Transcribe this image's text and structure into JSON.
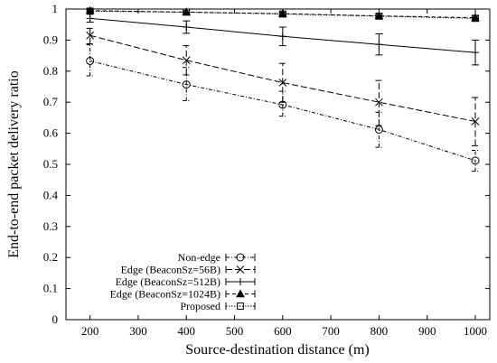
{
  "chart_data": {
    "type": "line",
    "title": "",
    "xlabel": "Source-destination distance (m)",
    "ylabel": "End-to-end packet delivery ratio",
    "xlim": [
      150,
      1030
    ],
    "ylim": [
      0,
      1
    ],
    "x_ticks": [
      "200",
      "300",
      "400",
      "500",
      "600",
      "700",
      "800",
      "900",
      "1000"
    ],
    "y_ticks": [
      "0",
      "0.1",
      "0.2",
      "0.3",
      "0.4",
      "0.5",
      "0.6",
      "0.7",
      "0.8",
      "0.9",
      "1"
    ],
    "x": [
      200,
      400,
      600,
      800,
      1000
    ],
    "grid": false,
    "legend_position": "bottom-left",
    "series": [
      {
        "name": "Non-edge",
        "marker": "circle",
        "dash": "dashdot",
        "values": [
          0.833,
          0.757,
          0.692,
          0.612,
          0.512
        ],
        "err_low": [
          0.785,
          0.705,
          0.655,
          0.555,
          0.478
        ],
        "err_high": [
          0.885,
          0.812,
          0.735,
          0.668,
          0.545
        ]
      },
      {
        "name": "Edge (BeaconSz=56B)",
        "marker": "x",
        "dash": "dashed",
        "values": [
          0.915,
          0.835,
          0.763,
          0.7,
          0.638
        ],
        "err_low": [
          0.888,
          0.788,
          0.7,
          0.625,
          0.56
        ],
        "err_high": [
          0.938,
          0.882,
          0.825,
          0.77,
          0.715
        ]
      },
      {
        "name": "Edge (BeaconSz=512B)",
        "marker": "plus",
        "dash": "solid",
        "values": [
          0.97,
          0.942,
          0.912,
          0.886,
          0.86
        ],
        "err_low": [
          0.958,
          0.922,
          0.882,
          0.852,
          0.82
        ],
        "err_high": [
          0.985,
          0.962,
          0.942,
          0.92,
          0.9
        ]
      },
      {
        "name": "Edge (BeaconSz=1024B)",
        "marker": "triangle",
        "dash": "shortdash",
        "values": [
          0.995,
          0.99,
          0.985,
          0.978,
          0.972
        ],
        "err_low": [
          0.99,
          0.985,
          0.98,
          0.972,
          0.965
        ],
        "err_high": [
          0.998,
          0.995,
          0.99,
          0.985,
          0.978
        ]
      },
      {
        "name": "Proposed",
        "marker": "square",
        "dash": "dotted",
        "values": [
          0.993,
          0.99,
          0.984,
          0.977,
          0.97
        ],
        "err_low": [
          0.988,
          0.985,
          0.978,
          0.97,
          0.962
        ],
        "err_high": [
          0.997,
          0.995,
          0.99,
          0.983,
          0.977
        ]
      }
    ]
  }
}
